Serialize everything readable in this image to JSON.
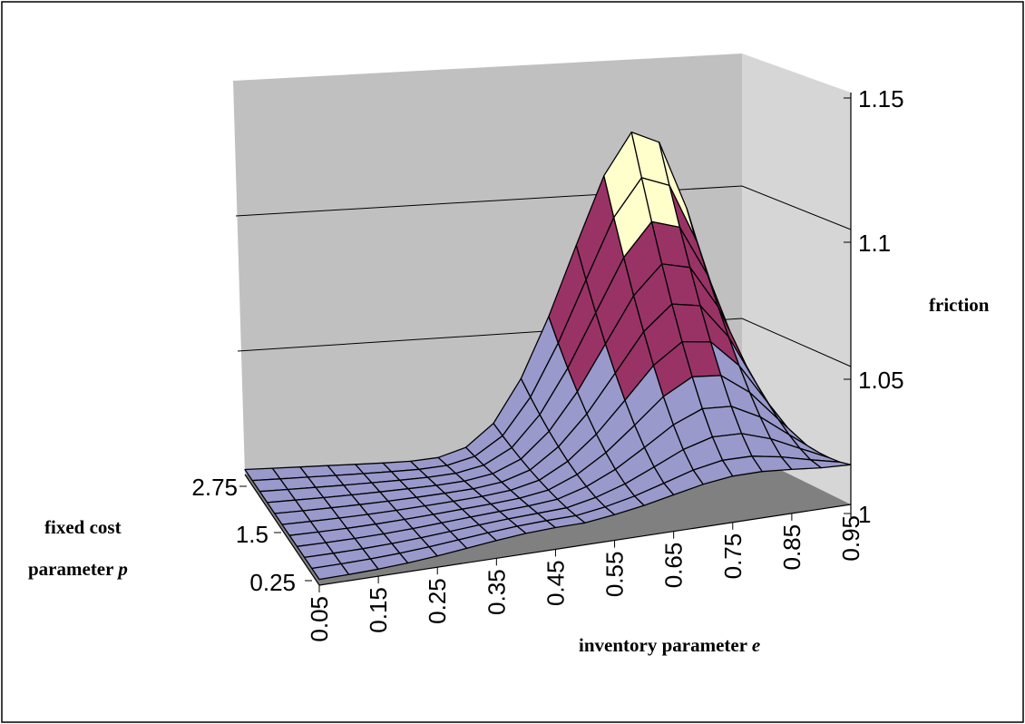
{
  "chart_data": {
    "type": "surface",
    "x_axis": {
      "label": "inventory parameter ",
      "label_var": "e",
      "tick_labels": [
        "0.05",
        "0.15",
        "0.25",
        "0.35",
        "0.45",
        "0.55",
        "0.65",
        "0.75",
        "0.85",
        "0.95"
      ],
      "range": [
        0.05,
        0.95
      ]
    },
    "y_axis": {
      "label_line1": "fixed cost",
      "label_line2": "parameter ",
      "label_var": "p",
      "tick_labels": [
        "0.25",
        "1.5",
        "2.75"
      ],
      "range": [
        0.25,
        2.75
      ]
    },
    "z_axis": {
      "label": "friction",
      "tick_labels": [
        "1",
        "1.05",
        "1.1",
        "1.15"
      ],
      "range": [
        1,
        1.15
      ]
    },
    "colors": {
      "band_1_00_1_05": "#9999cc",
      "band_1_05_1_10": "#993366",
      "band_1_10_1_15": "#ffffcc",
      "back_wall": "#c0c0c0",
      "floor": "#808080",
      "gridline": "#000000"
    },
    "grid": true
  }
}
